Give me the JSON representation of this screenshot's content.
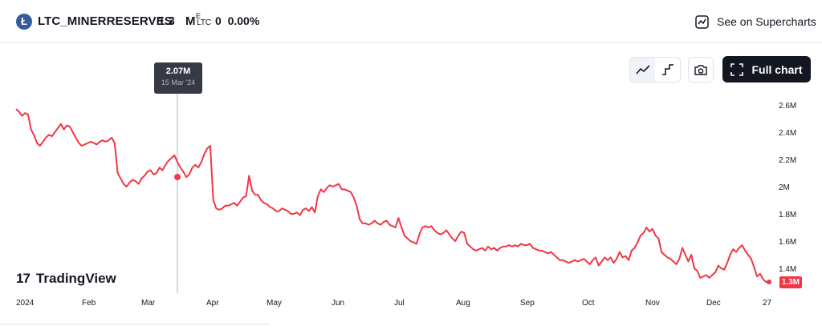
{
  "header": {
    "logo_glyph": "Ł",
    "symbol": "LTC_MINERRESERVES",
    "last_value": "1.3",
    "unit_sup": "M",
    "unit_sup2": "E",
    "unit": "LTC",
    "change": "0",
    "change_pct": "0.00%",
    "supercharts_label": "See on Supercharts"
  },
  "toolbar": {
    "full_chart_label": "Full chart"
  },
  "tooltip": {
    "value": "2.07M",
    "date": "15 Mar '24"
  },
  "watermark": {
    "logo": "17",
    "brand": "TradingView"
  },
  "last_label": "1.3M",
  "colors": {
    "line": "#f23645",
    "text": "#131722",
    "axis_text": "#131722",
    "crosshair": "#b2b5be"
  },
  "chart_data": {
    "type": "line",
    "title": "LTC_MINERRESERVES",
    "x_tick_labels": [
      "2024",
      "Feb",
      "Mar",
      "Apr",
      "May",
      "Jun",
      "Jul",
      "Aug",
      "Sep",
      "Oct",
      "Nov",
      "Dec",
      "27"
    ],
    "y_tick_labels": [
      "2.6M",
      "2.4M",
      "2.2M",
      "2M",
      "1.8M",
      "1.6M",
      "1.4M"
    ],
    "y_ticks": [
      2.6,
      2.4,
      2.2,
      2.0,
      1.8,
      1.6,
      1.4
    ],
    "ylim": [
      1.25,
      2.7
    ],
    "y_unit": "M LTC",
    "series": [
      {
        "values": [
          2.57,
          2.55,
          2.52,
          2.54,
          2.53,
          2.42,
          2.38,
          2.32,
          2.3,
          2.33,
          2.36,
          2.38,
          2.37,
          2.4,
          2.43,
          2.46,
          2.42,
          2.45,
          2.44,
          2.4,
          2.36,
          2.32,
          2.3,
          2.31,
          2.32,
          2.33,
          2.32,
          2.31,
          2.33,
          2.34,
          2.33,
          2.34,
          2.36,
          2.32,
          2.1,
          2.06,
          2.02,
          2.0,
          2.03,
          2.05,
          2.04,
          2.02,
          2.06,
          2.08,
          2.11,
          2.12,
          2.09,
          2.1,
          2.14,
          2.12,
          2.16,
          2.19,
          2.21,
          2.23,
          2.18,
          2.14,
          2.11,
          2.07,
          2.09,
          2.14,
          2.16,
          2.14,
          2.18,
          2.24,
          2.28,
          2.3,
          1.9,
          1.84,
          1.83,
          1.84,
          1.86,
          1.86,
          1.87,
          1.88,
          1.86,
          1.89,
          1.92,
          1.93,
          2.08,
          1.97,
          1.94,
          1.94,
          1.9,
          1.88,
          1.87,
          1.85,
          1.84,
          1.82,
          1.82,
          1.84,
          1.83,
          1.82,
          1.8,
          1.8,
          1.81,
          1.79,
          1.83,
          1.84,
          1.82,
          1.85,
          1.81,
          1.93,
          1.98,
          1.96,
          1.99,
          2.01,
          2.0,
          2.01,
          2.02,
          1.98,
          1.98,
          1.97,
          1.96,
          1.92,
          1.86,
          1.76,
          1.73,
          1.73,
          1.72,
          1.73,
          1.75,
          1.73,
          1.72,
          1.74,
          1.75,
          1.72,
          1.71,
          1.7,
          1.77,
          1.7,
          1.64,
          1.62,
          1.6,
          1.59,
          1.58,
          1.65,
          1.7,
          1.71,
          1.7,
          1.71,
          1.68,
          1.66,
          1.65,
          1.66,
          1.68,
          1.65,
          1.62,
          1.6,
          1.64,
          1.67,
          1.66,
          1.58,
          1.56,
          1.54,
          1.53,
          1.54,
          1.55,
          1.53,
          1.56,
          1.54,
          1.55,
          1.53,
          1.55,
          1.56,
          1.56,
          1.57,
          1.56,
          1.57,
          1.56,
          1.58,
          1.57,
          1.57,
          1.58,
          1.55,
          1.54,
          1.53,
          1.53,
          1.52,
          1.51,
          1.52,
          1.5,
          1.48,
          1.46,
          1.46,
          1.45,
          1.44,
          1.45,
          1.46,
          1.45,
          1.46,
          1.47,
          1.45,
          1.43,
          1.46,
          1.48,
          1.42,
          1.45,
          1.48,
          1.46,
          1.48,
          1.44,
          1.47,
          1.52,
          1.48,
          1.49,
          1.46,
          1.53,
          1.55,
          1.59,
          1.64,
          1.66,
          1.7,
          1.67,
          1.69,
          1.64,
          1.62,
          1.52,
          1.5,
          1.48,
          1.47,
          1.45,
          1.43,
          1.47,
          1.55,
          1.5,
          1.45,
          1.5,
          1.4,
          1.38,
          1.33,
          1.34,
          1.35,
          1.33,
          1.35,
          1.37,
          1.42,
          1.4,
          1.39,
          1.44,
          1.5,
          1.54,
          1.52,
          1.55,
          1.57,
          1.53,
          1.5,
          1.47,
          1.41,
          1.34,
          1.36,
          1.32,
          1.3,
          1.3
        ]
      }
    ],
    "crosshair": {
      "date": "15 Mar '24",
      "value": 2.07
    }
  }
}
